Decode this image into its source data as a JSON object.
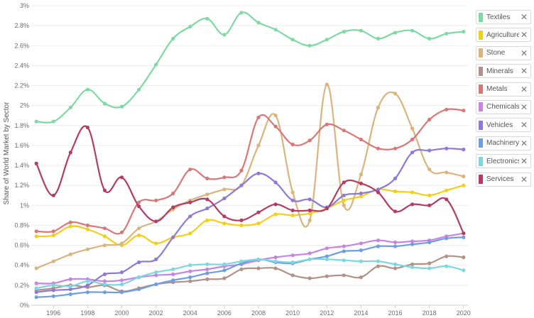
{
  "chart_data": {
    "type": "line",
    "title": "",
    "xlabel": "",
    "ylabel": "Share of World Market by Sector",
    "x": [
      1995,
      1996,
      1997,
      1998,
      1999,
      2000,
      2001,
      2002,
      2003,
      2004,
      2005,
      2006,
      2007,
      2008,
      2009,
      2010,
      2011,
      2012,
      2013,
      2014,
      2015,
      2016,
      2017,
      2018,
      2019,
      2020
    ],
    "xlim": [
      1994.7,
      2020.3
    ],
    "ylim": [
      0,
      3
    ],
    "x_ticks": [
      "1996",
      "1998",
      "2000",
      "2002",
      "2004",
      "2006",
      "2008",
      "2010",
      "2012",
      "2014",
      "2016",
      "2018",
      "2020"
    ],
    "y_ticks": [
      "0%",
      "0.2%",
      "0.4%",
      "0.6%",
      "0.8%",
      "1%",
      "1.2%",
      "1.4%",
      "1.6%",
      "1.8%",
      "2%",
      "2.2%",
      "2.4%",
      "2.6%",
      "2.8%",
      "3%"
    ],
    "grid": "horizontal",
    "legend_position": "right",
    "series": [
      {
        "name": "Textiles",
        "color": "#7ed9a2",
        "values": [
          1.84,
          1.84,
          1.98,
          2.16,
          2.02,
          1.99,
          2.16,
          2.41,
          2.67,
          2.79,
          2.87,
          2.71,
          2.93,
          2.83,
          2.76,
          2.66,
          2.6,
          2.66,
          2.74,
          2.75,
          2.67,
          2.73,
          2.75,
          2.67,
          2.72,
          2.74
        ]
      },
      {
        "name": "Agriculture",
        "color": "#f5cf16",
        "values": [
          0.69,
          0.7,
          0.79,
          0.76,
          0.69,
          0.6,
          0.7,
          0.62,
          0.68,
          0.72,
          0.85,
          0.82,
          0.8,
          0.82,
          0.91,
          0.9,
          0.92,
          0.97,
          1.05,
          1.09,
          1.16,
          1.14,
          1.13,
          1.1,
          1.15,
          1.2
        ]
      },
      {
        "name": "Stone",
        "color": "#d9b47c",
        "values": [
          0.37,
          0.44,
          0.51,
          0.56,
          0.6,
          0.62,
          0.77,
          0.84,
          0.96,
          1.05,
          1.11,
          1.16,
          1.2,
          1.6,
          1.9,
          1.13,
          0.85,
          2.21,
          1.0,
          1.31,
          1.98,
          2.12,
          1.77,
          1.36,
          1.33,
          1.29
        ]
      },
      {
        "name": "Minerals",
        "color": "#b39189",
        "values": [
          0.15,
          0.17,
          0.2,
          0.18,
          0.2,
          0.14,
          0.17,
          0.21,
          0.23,
          0.24,
          0.26,
          0.27,
          0.36,
          0.37,
          0.37,
          0.3,
          0.27,
          0.29,
          0.3,
          0.28,
          0.39,
          0.37,
          0.41,
          0.42,
          0.49,
          0.48
        ]
      },
      {
        "name": "Metals",
        "color": "#d97777",
        "values": [
          0.74,
          0.74,
          0.83,
          0.8,
          0.77,
          0.73,
          1.03,
          1.05,
          1.12,
          1.36,
          1.27,
          1.28,
          1.35,
          1.88,
          1.79,
          1.61,
          1.65,
          1.81,
          1.75,
          1.66,
          1.57,
          1.57,
          1.66,
          1.86,
          1.96,
          1.95
        ]
      },
      {
        "name": "Chemicals",
        "color": "#c585e0",
        "values": [
          0.22,
          0.22,
          0.26,
          0.26,
          0.24,
          0.25,
          0.28,
          0.3,
          0.31,
          0.34,
          0.36,
          0.39,
          0.41,
          0.45,
          0.48,
          0.5,
          0.52,
          0.57,
          0.59,
          0.62,
          0.65,
          0.63,
          0.64,
          0.65,
          0.69,
          0.72
        ]
      },
      {
        "name": "Vehicles",
        "color": "#8e79d6",
        "values": [
          0.13,
          0.15,
          0.16,
          0.2,
          0.31,
          0.33,
          0.43,
          0.46,
          0.68,
          0.89,
          0.97,
          1.07,
          1.2,
          1.32,
          1.23,
          1.05,
          1.06,
          0.98,
          1.1,
          1.12,
          1.16,
          1.27,
          1.53,
          1.55,
          1.57,
          1.56
        ]
      },
      {
        "name": "Machinery",
        "color": "#6f9ee0",
        "values": [
          0.08,
          0.09,
          0.11,
          0.13,
          0.13,
          0.13,
          0.16,
          0.21,
          0.25,
          0.28,
          0.32,
          0.35,
          0.42,
          0.46,
          0.43,
          0.42,
          0.46,
          0.49,
          0.54,
          0.55,
          0.59,
          0.59,
          0.61,
          0.63,
          0.67,
          0.68
        ]
      },
      {
        "name": "Electronics",
        "color": "#7cd8e0",
        "values": [
          0.17,
          0.2,
          0.19,
          0.24,
          0.21,
          0.21,
          0.28,
          0.33,
          0.36,
          0.4,
          0.41,
          0.41,
          0.44,
          0.46,
          0.44,
          0.43,
          0.46,
          0.46,
          0.45,
          0.44,
          0.44,
          0.41,
          0.38,
          0.37,
          0.39,
          0.35
        ]
      },
      {
        "name": "Services",
        "color": "#b23c66",
        "values": [
          1.42,
          1.1,
          1.53,
          1.78,
          1.15,
          1.28,
          0.99,
          0.84,
          0.98,
          1.03,
          1.06,
          0.89,
          0.85,
          0.93,
          1.01,
          0.95,
          0.95,
          0.97,
          1.23,
          1.22,
          1.13,
          0.94,
          1.01,
          1.0,
          1.06,
          0.72
        ]
      }
    ]
  }
}
